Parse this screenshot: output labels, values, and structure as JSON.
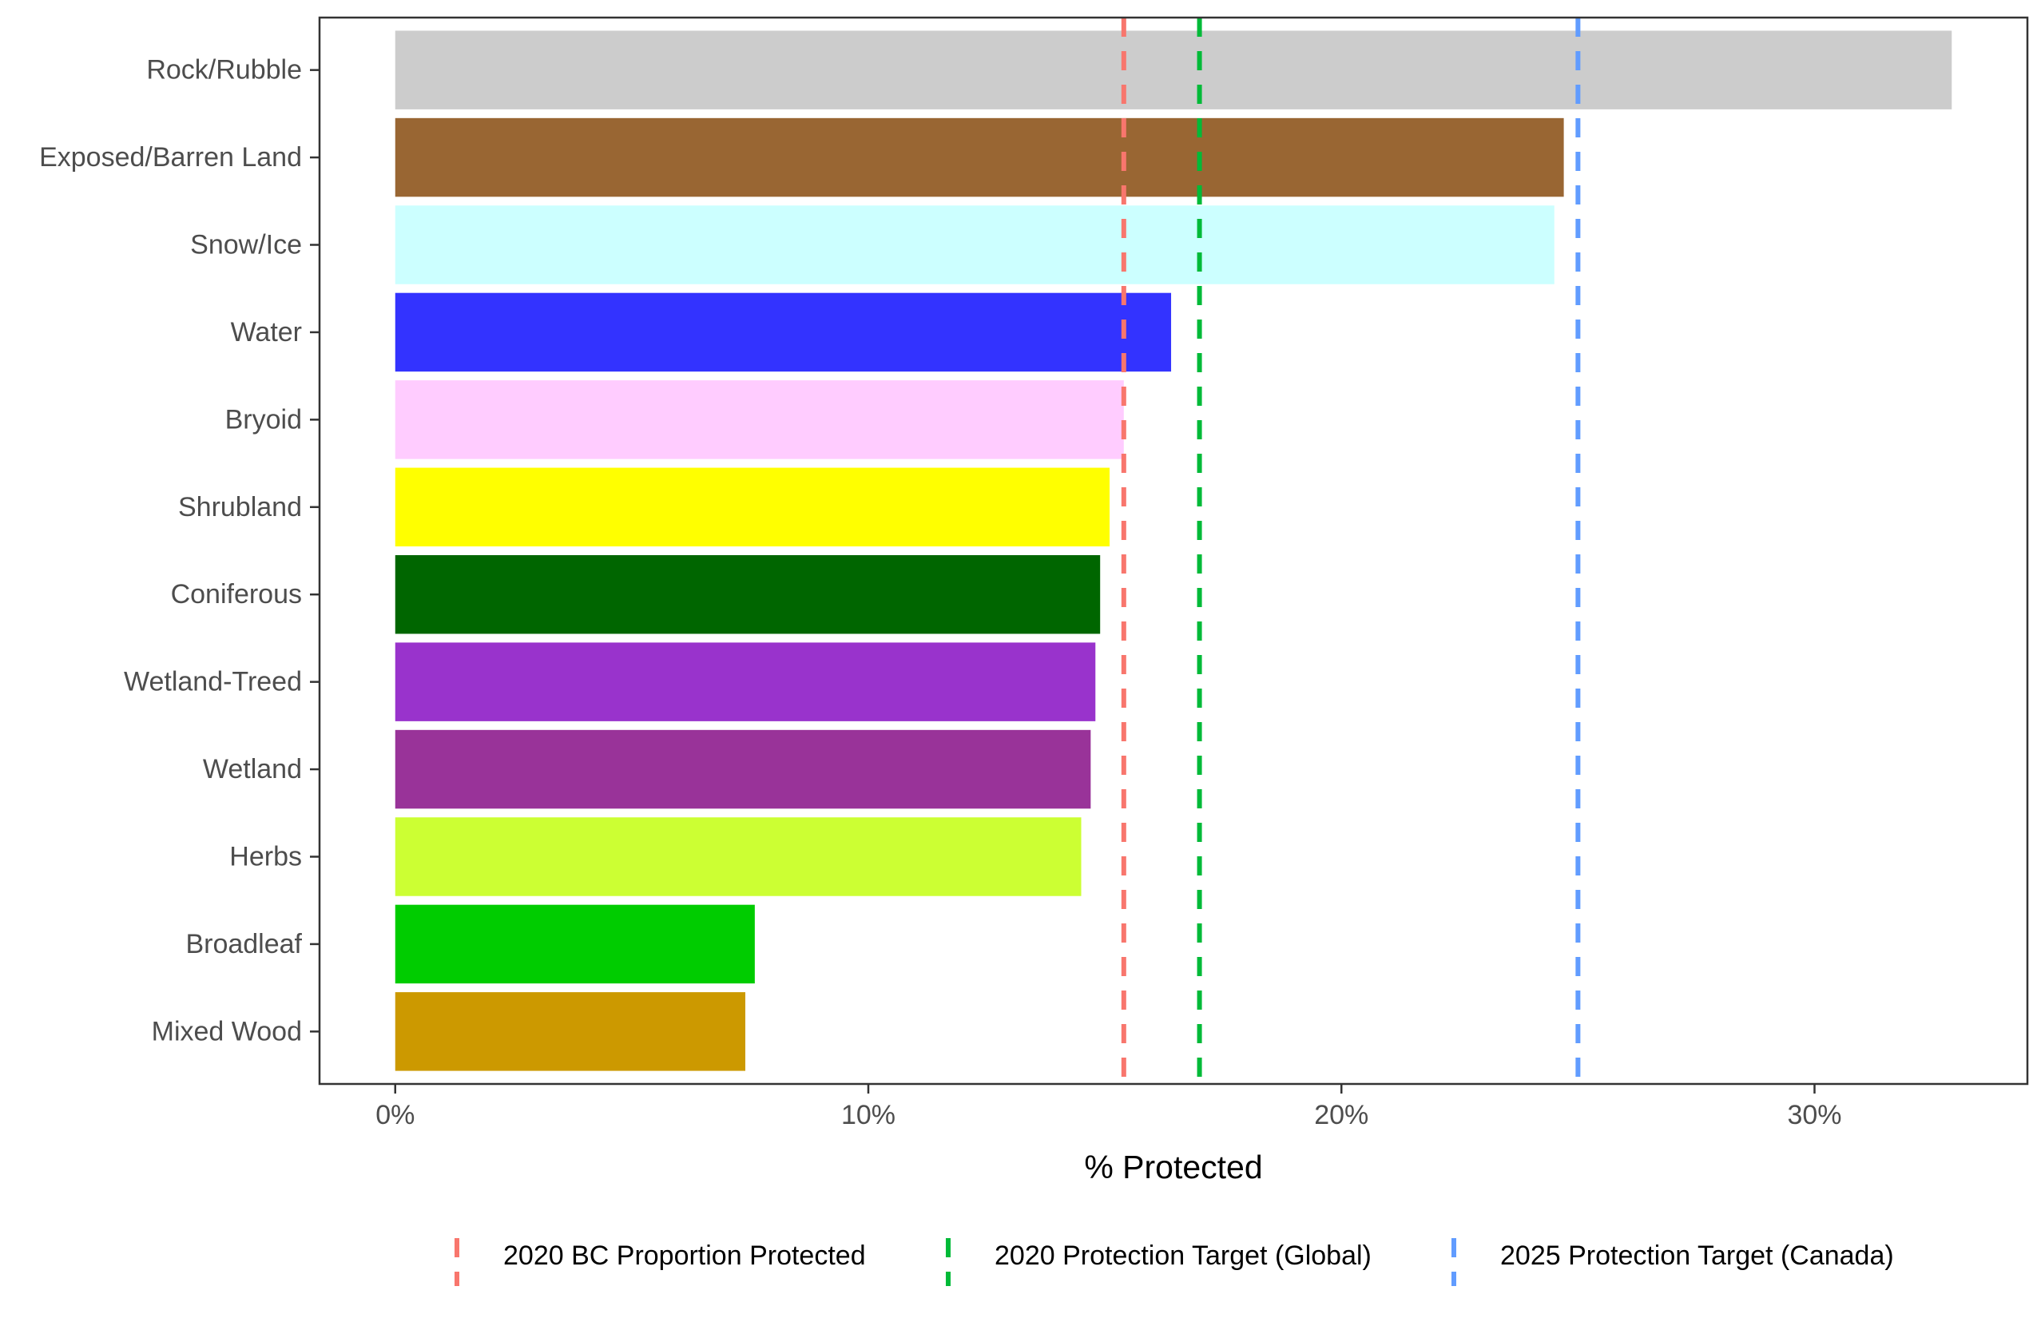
{
  "chart_data": {
    "type": "bar",
    "orientation": "horizontal",
    "xlabel": "% Protected",
    "ylabel": "",
    "xlim": [
      -1.6,
      34.5
    ],
    "x_ticks": [
      0,
      10,
      20,
      30
    ],
    "x_tick_labels": [
      "0%",
      "10%",
      "20%",
      "30%"
    ],
    "grid": false,
    "legend_position": "bottom",
    "categories": [
      "Rock/Rubble",
      "Exposed/Barren Land",
      "Snow/Ice",
      "Water",
      "Bryoid",
      "Shrubland",
      "Coniferous",
      "Wetland-Treed",
      "Wetland",
      "Herbs",
      "Broadleaf",
      "Mixed Wood"
    ],
    "values": [
      32.9,
      24.7,
      24.5,
      16.4,
      15.4,
      15.1,
      14.9,
      14.8,
      14.7,
      14.5,
      7.6,
      7.4
    ],
    "bar_colors": [
      "#cccccc",
      "#996633",
      "#ccffff",
      "#3333ff",
      "#ffccff",
      "#ffff00",
      "#006600",
      "#9933cc",
      "#993399",
      "#ccff33",
      "#00cc00",
      "#cc9900"
    ],
    "reference_lines": [
      {
        "name": "2020 BC Proportion Protected",
        "value": 15.4,
        "color": "#f8766d"
      },
      {
        "name": "2020 Protection Target (Global)",
        "value": 17,
        "color": "#00ba38"
      },
      {
        "name": "2025 Protection Target (Canada)",
        "value": 25,
        "color": "#619cff"
      }
    ]
  }
}
